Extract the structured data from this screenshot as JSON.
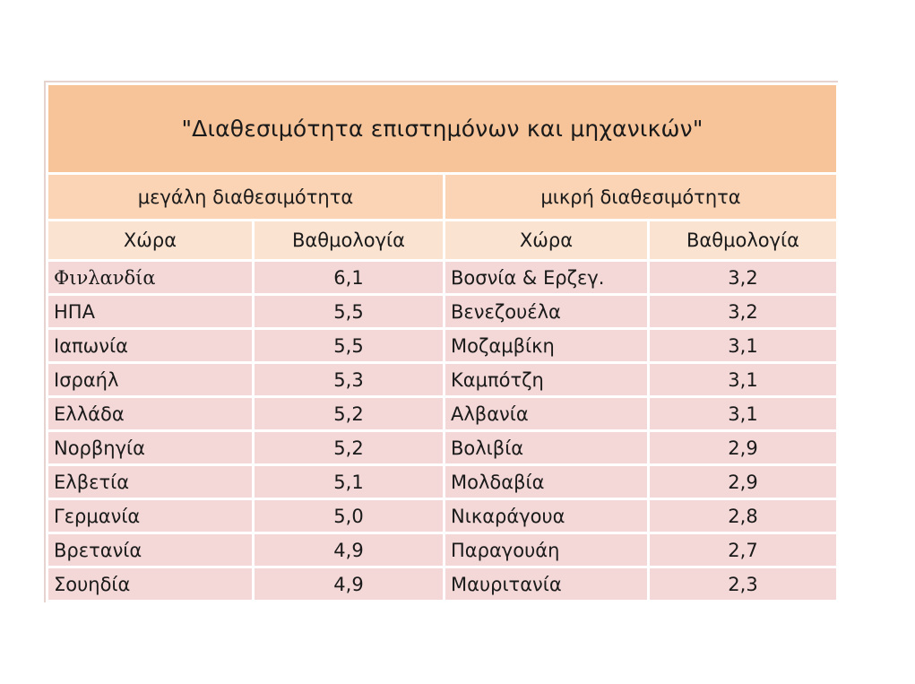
{
  "title": "\"Διαθεσιμότητα επιστημόνων και μηχανικών\"",
  "groups": {
    "high": "μεγάλη διαθεσιμότητα",
    "low": "μικρή διαθεσιμότητα"
  },
  "columns": {
    "country": "Χώρα",
    "score": "Βαθμολογία"
  },
  "rows": [
    {
      "high_country": "Φινλανδία",
      "high_score": "6,1",
      "low_country": "Βοσνία & Ερζεγ.",
      "low_score": "3,2"
    },
    {
      "high_country": "ΗΠΑ",
      "high_score": "5,5",
      "low_country": "Βενεζουέλα",
      "low_score": "3,2"
    },
    {
      "high_country": "Ιαπωνία",
      "high_score": "5,5",
      "low_country": "Μοζαμβίκη",
      "low_score": "3,1"
    },
    {
      "high_country": "Ισραήλ",
      "high_score": "5,3",
      "low_country": "Καμπότζη",
      "low_score": "3,1"
    },
    {
      "high_country": "Ελλάδα",
      "high_score": "5,2",
      "low_country": "Αλβανία",
      "low_score": "3,1"
    },
    {
      "high_country": "Νορβηγία",
      "high_score": "5,2",
      "low_country": "Βολιβία",
      "low_score": "2,9"
    },
    {
      "high_country": "Ελβετία",
      "high_score": "5,1",
      "low_country": "Μολδαβία",
      "low_score": "2,9"
    },
    {
      "high_country": "Γερμανία",
      "high_score": "5,0",
      "low_country": "Νικαράγουα",
      "low_score": "2,8"
    },
    {
      "high_country": "Βρετανία",
      "high_score": "4,9",
      "low_country": "Παραγουάη",
      "low_score": "2,7"
    },
    {
      "high_country": "Σουηδία",
      "high_score": "4,9",
      "low_country": "Μαυριτανία",
      "low_score": "2,3"
    }
  ]
}
